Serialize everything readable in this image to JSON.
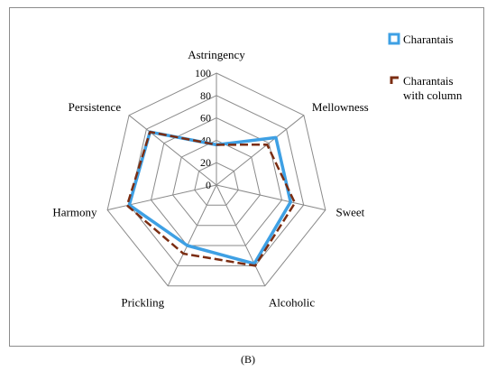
{
  "panel_label": "(B)",
  "chart_data": {
    "type": "radar",
    "axes": [
      "Astringency",
      "Mellowness",
      "Sweet",
      "Alcoholic",
      "Prickling",
      "Harmony",
      "Persistence"
    ],
    "ticks": [
      "0",
      "20",
      "40",
      "60",
      "80",
      "100"
    ],
    "range": [
      0,
      100
    ],
    "grid": true,
    "legend_position": "top-right",
    "series": [
      {
        "name": "Charantais",
        "values": [
          36,
          68,
          68,
          78,
          60,
          80,
          76
        ],
        "color": "#3ea0e4",
        "style": "solid"
      },
      {
        "name": "Charantais with column",
        "name_lines": [
          "Charantais",
          "with column"
        ],
        "values": [
          36,
          58,
          72,
          80,
          68,
          82,
          76
        ],
        "color": "#7b2d12",
        "style": "dashed"
      }
    ]
  }
}
